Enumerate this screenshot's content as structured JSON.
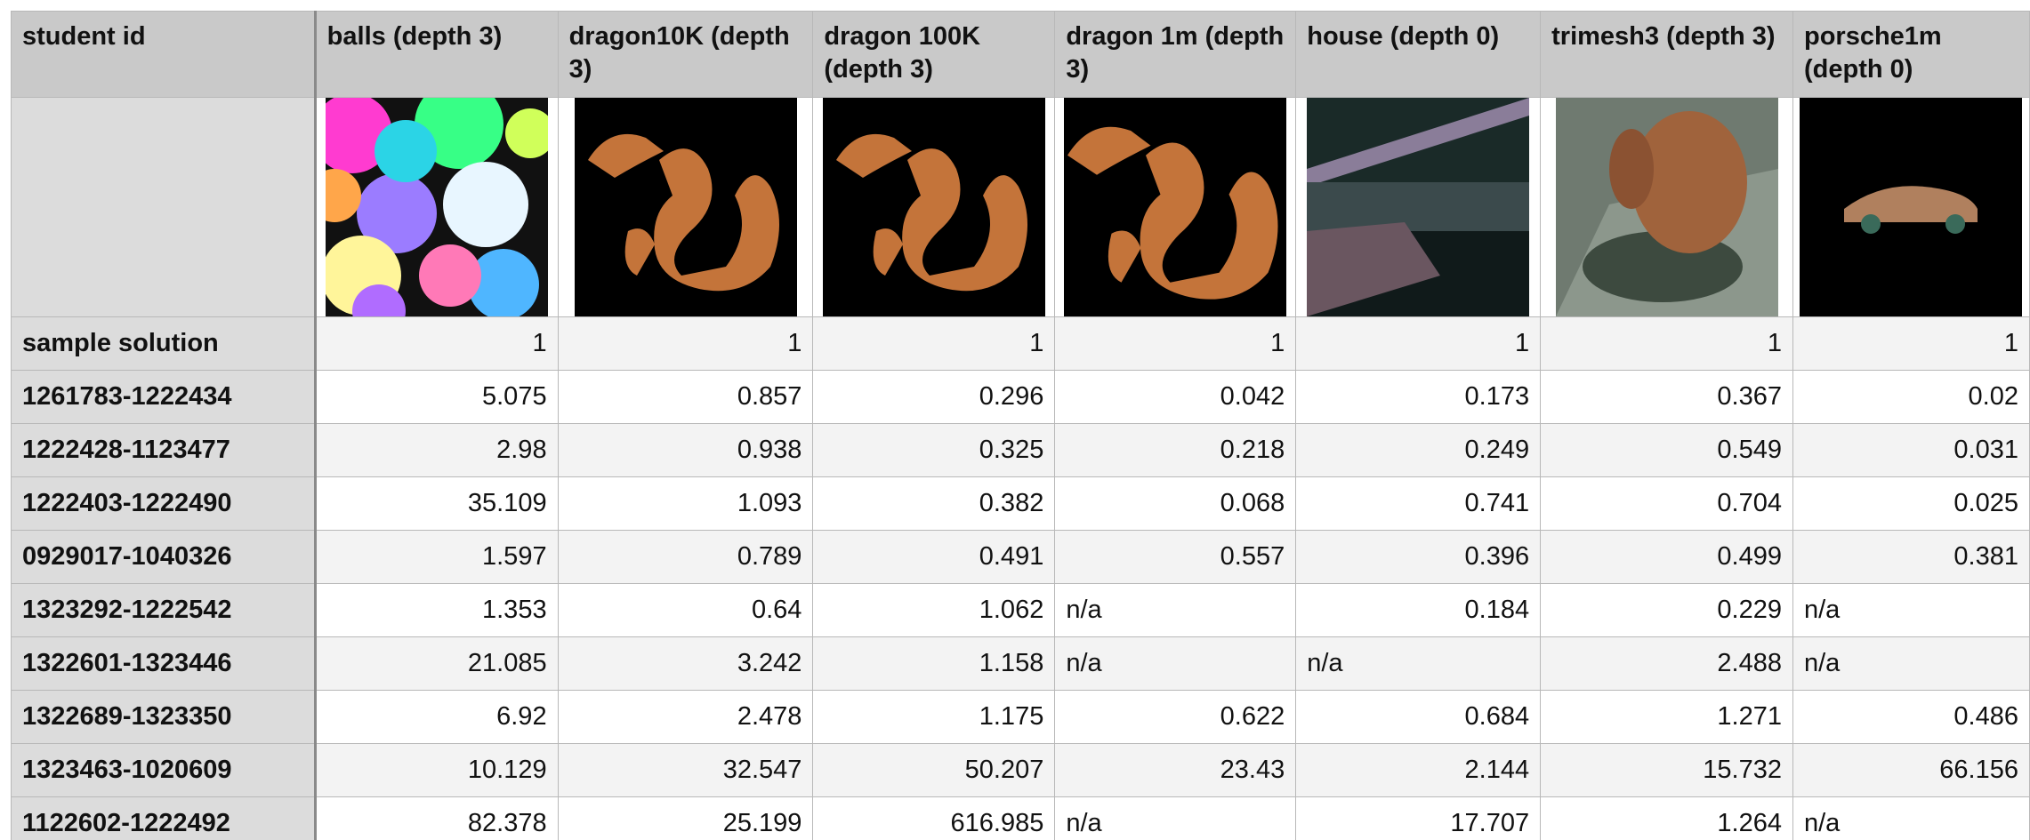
{
  "table": {
    "columns": [
      "student id",
      "balls (depth 3)",
      "dragon10K (depth 3)",
      "dragon 100K (depth 3)",
      "dragon 1m (depth 3)",
      "house (depth 0)",
      "trimesh3 (depth 3)",
      "porsche1m (depth 0)"
    ],
    "rows": [
      {
        "id": "sample solution",
        "values": [
          1,
          1,
          1,
          1,
          1,
          1,
          1
        ]
      },
      {
        "id": "1261783-1222434",
        "values": [
          5.075,
          0.857,
          0.296,
          0.042,
          0.173,
          0.367,
          0.02
        ]
      },
      {
        "id": "1222428-1123477",
        "values": [
          2.98,
          0.938,
          0.325,
          0.218,
          0.249,
          0.549,
          0.031
        ]
      },
      {
        "id": "1222403-1222490",
        "values": [
          35.109,
          1.093,
          0.382,
          0.068,
          0.741,
          0.704,
          0.025
        ]
      },
      {
        "id": "0929017-1040326",
        "values": [
          1.597,
          0.789,
          0.491,
          0.557,
          0.396,
          0.499,
          0.381
        ]
      },
      {
        "id": "1323292-1222542",
        "values": [
          1.353,
          0.64,
          1.062,
          "n/a",
          0.184,
          0.229,
          "n/a"
        ]
      },
      {
        "id": "1322601-1323446",
        "values": [
          21.085,
          3.242,
          1.158,
          "n/a",
          "n/a",
          2.488,
          "n/a"
        ]
      },
      {
        "id": "1322689-1323350",
        "values": [
          6.92,
          2.478,
          1.175,
          0.622,
          0.684,
          1.271,
          0.486
        ]
      },
      {
        "id": "1323463-1020609",
        "values": [
          10.129,
          32.547,
          50.207,
          23.43,
          2.144,
          15.732,
          66.156
        ]
      },
      {
        "id": "1122602-1222492",
        "values": [
          82.378,
          25.199,
          616.985,
          "n/a",
          17.707,
          1.264,
          "n/a"
        ]
      }
    ]
  }
}
